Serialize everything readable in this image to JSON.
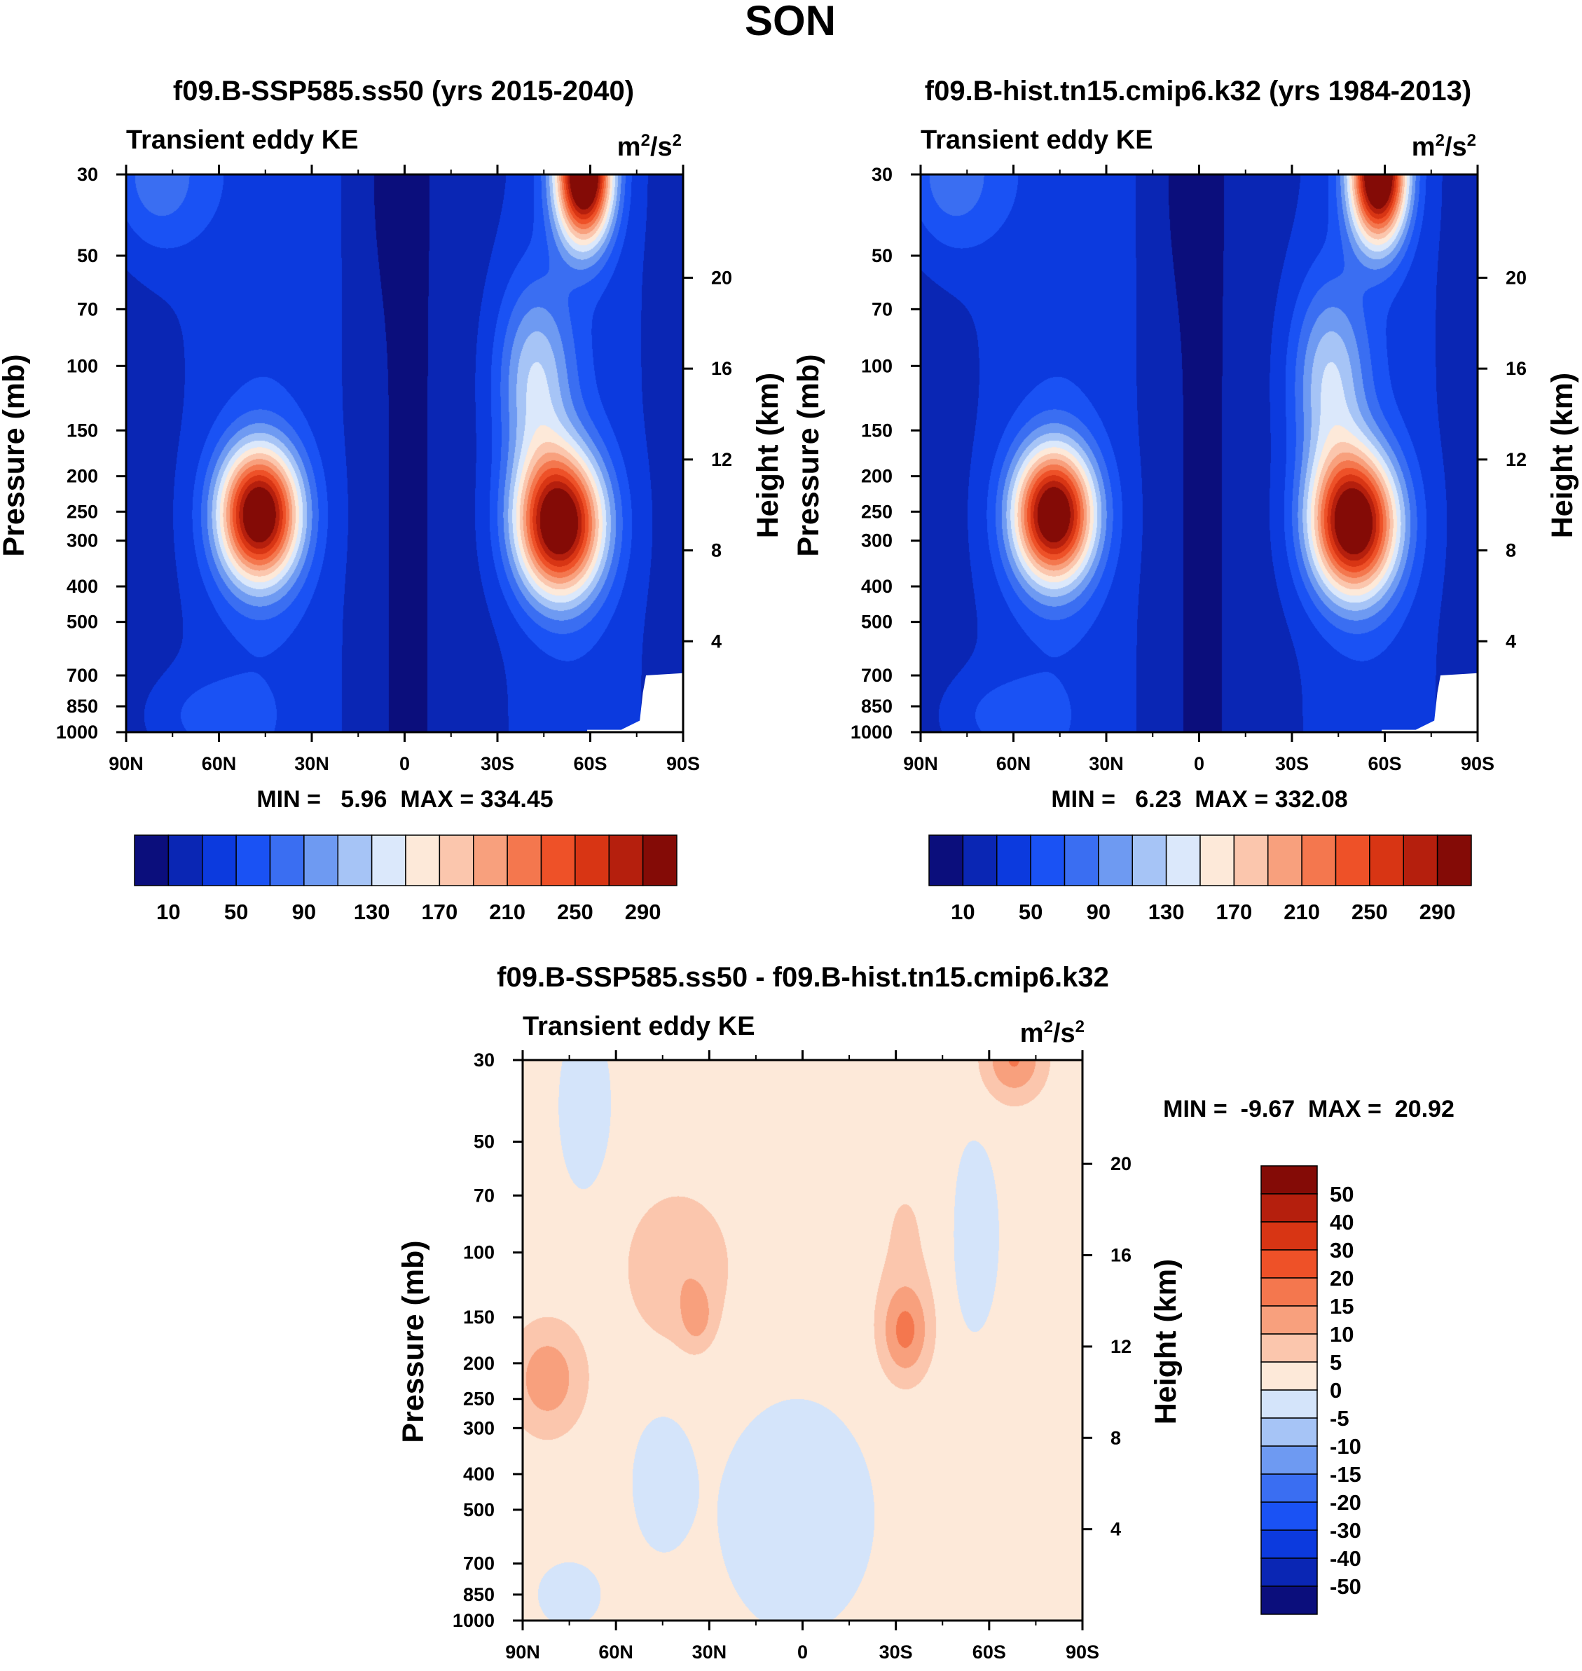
{
  "figure": {
    "title": "SON"
  },
  "colors": {
    "abs_levels": [
      "#0b0e7c",
      "#0a26b4",
      "#0c3ade",
      "#1a52f4",
      "#3a6ef2",
      "#6e9af2",
      "#a6c4f6",
      "#dbe8fb",
      "#fde9d9",
      "#fbc6ad",
      "#f8a07d",
      "#f4774e",
      "#ee5128",
      "#d83514",
      "#b51f0d",
      "#840b06"
    ],
    "diff_levels": [
      "#0b0e7c",
      "#0a26b4",
      "#0c3ade",
      "#1a52f4",
      "#3a6ef2",
      "#6e9af2",
      "#a6c4f6",
      "#d4e4fa",
      "#fde9d9",
      "#fbc6ad",
      "#f8a07d",
      "#f4774e",
      "#ee5128",
      "#d83514",
      "#b51f0d",
      "#840b06"
    ],
    "missing": "#ffffff"
  },
  "panels": [
    {
      "id": "ssp585",
      "title": "f09.B-SSP585.ss50 (yrs 2015-2040)",
      "left_label": "Transient eddy KE",
      "unit": {
        "base": "m",
        "sup1": "2",
        "mid": "/s",
        "sup2": "2"
      },
      "ylabel": "Pressure (mb)",
      "ylabel_right": "Height (km)",
      "minmax": "MIN =   5.96  MAX = 334.45",
      "variant": "fut"
    },
    {
      "id": "hist",
      "title": "f09.B-hist.tn15.cmip6.k32 (yrs 1984-2013)",
      "left_label": "Transient eddy KE",
      "unit": {
        "base": "m",
        "sup1": "2",
        "mid": "/s",
        "sup2": "2"
      },
      "ylabel": "Pressure (mb)",
      "ylabel_right": "Height (km)",
      "minmax": "MIN =   6.23  MAX = 332.08",
      "variant": "hist"
    },
    {
      "id": "diff",
      "title": "f09.B-SSP585.ss50 - f09.B-hist.tn15.cmip6.k32",
      "left_label": "Transient eddy KE",
      "unit": {
        "base": "m",
        "sup1": "2",
        "mid": "/s",
        "sup2": "2"
      },
      "ylabel": "Pressure (mb)",
      "ylabel_right": "Height (km)",
      "minmax": "MIN =  -9.67  MAX =  20.92",
      "variant": "diff"
    }
  ],
  "chart_data": [
    {
      "type": "heatmap",
      "title": "f09.B-SSP585.ss50 (yrs 2015-2040)",
      "subtitle": "Transient eddy KE (m2/s2)",
      "xlabel": "",
      "ylabel": "Pressure (mb)",
      "ylabel_right": "Height (km)",
      "x_ticks": [
        "90N",
        "60N",
        "30N",
        "0",
        "30S",
        "60S",
        "90S"
      ],
      "x_values": [
        90,
        60,
        30,
        0,
        -30,
        -60,
        -90
      ],
      "y_ticks": [
        30,
        50,
        70,
        100,
        150,
        200,
        250,
        300,
        400,
        500,
        700,
        850,
        1000
      ],
      "y_range": [
        1000,
        30
      ],
      "y_right_ticks": [
        20,
        16,
        12,
        8,
        4
      ],
      "levels": [
        10,
        30,
        50,
        70,
        90,
        110,
        130,
        150,
        170,
        190,
        210,
        230,
        250,
        270,
        290
      ],
      "colorbar_labels": [
        "10",
        "50",
        "90",
        "130",
        "170",
        "210",
        "250",
        "290"
      ],
      "min": 5.96,
      "max": 334.45,
      "features": [
        {
          "name": "NH jet maximum",
          "lat": 47,
          "pressure": 250,
          "value": 300
        },
        {
          "name": "SH jet maximum",
          "lat": -50,
          "pressure": 270,
          "value": 300
        },
        {
          "name": "SH stratospheric polar maximum",
          "lat": -57,
          "pressure": 30,
          "value": 334
        }
      ]
    },
    {
      "type": "heatmap",
      "title": "f09.B-hist.tn15.cmip6.k32 (yrs 1984-2013)",
      "subtitle": "Transient eddy KE (m2/s2)",
      "xlabel": "",
      "ylabel": "Pressure (mb)",
      "ylabel_right": "Height (km)",
      "x_ticks": [
        "90N",
        "60N",
        "30N",
        "0",
        "30S",
        "60S",
        "90S"
      ],
      "x_values": [
        90,
        60,
        30,
        0,
        -30,
        -60,
        -90
      ],
      "y_ticks": [
        30,
        50,
        70,
        100,
        150,
        200,
        250,
        300,
        400,
        500,
        700,
        850,
        1000
      ],
      "y_range": [
        1000,
        30
      ],
      "y_right_ticks": [
        20,
        16,
        12,
        8,
        4
      ],
      "levels": [
        10,
        30,
        50,
        70,
        90,
        110,
        130,
        150,
        170,
        190,
        210,
        230,
        250,
        270,
        290
      ],
      "colorbar_labels": [
        "10",
        "50",
        "90",
        "130",
        "170",
        "210",
        "250",
        "290"
      ],
      "min": 6.23,
      "max": 332.08,
      "features": [
        {
          "name": "NH jet maximum",
          "lat": 47,
          "pressure": 250,
          "value": 295
        },
        {
          "name": "SH jet maximum",
          "lat": -50,
          "pressure": 270,
          "value": 295
        },
        {
          "name": "SH stratospheric polar maximum",
          "lat": -57,
          "pressure": 30,
          "value": 332
        }
      ]
    },
    {
      "type": "heatmap",
      "title": "f09.B-SSP585.ss50 - f09.B-hist.tn15.cmip6.k32",
      "subtitle": "Transient eddy KE (m2/s2)",
      "xlabel": "",
      "ylabel": "Pressure (mb)",
      "ylabel_right": "Height (km)",
      "x_ticks": [
        "90N",
        "60N",
        "30N",
        "0",
        "30S",
        "60S",
        "90S"
      ],
      "x_values": [
        90,
        60,
        30,
        0,
        -30,
        -60,
        -90
      ],
      "y_ticks": [
        30,
        50,
        70,
        100,
        150,
        200,
        250,
        300,
        400,
        500,
        700,
        850,
        1000
      ],
      "y_range": [
        1000,
        30
      ],
      "y_right_ticks": [
        20,
        16,
        12,
        8,
        4
      ],
      "levels": [
        -50,
        -40,
        -30,
        -20,
        -15,
        -10,
        -5,
        0,
        5,
        10,
        15,
        20,
        30,
        40,
        50
      ],
      "colorbar_labels": [
        "50",
        "40",
        "30",
        "20",
        "15",
        "10",
        "5",
        "0",
        "-5",
        "-10",
        "-15",
        "-20",
        "-30",
        "-40",
        "-50"
      ],
      "min": -9.67,
      "max": 20.92,
      "features": [
        {
          "name": "NH upper-tropospheric increase",
          "lat": 80,
          "pressure": 220,
          "value": 15
        },
        {
          "name": "subtropical increase",
          "lat": 34,
          "pressure": 150,
          "value": 15
        },
        {
          "name": "southern subtropical increase",
          "lat": -33,
          "pressure": 160,
          "value": 20
        },
        {
          "name": "SH polar stratosphere increase",
          "lat": -68,
          "pressure": 30,
          "value": 15
        },
        {
          "name": "tropical tropospheric decrease",
          "lat": 0,
          "pressure": 500,
          "value": -5
        },
        {
          "name": "NH mid-troposphere decrease",
          "lat": 45,
          "pressure": 400,
          "value": -10
        }
      ]
    }
  ]
}
